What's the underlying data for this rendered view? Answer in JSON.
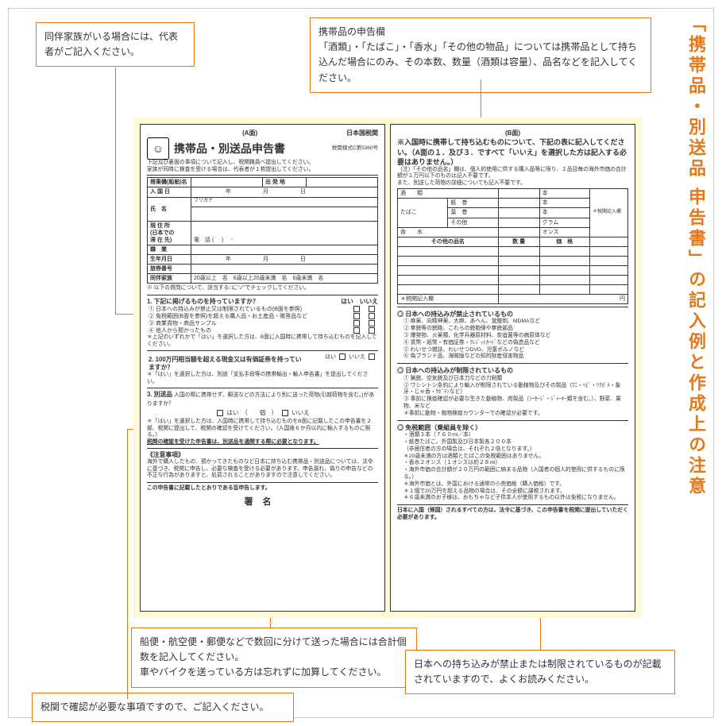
{
  "colors": {
    "accent": "#e67817",
    "form_bg": "#fff9d6",
    "border": "#333333",
    "frame": "#cccccc"
  },
  "vtitle": "「携帯品・別送品 申告書」の記入例と作成上の注意",
  "notes": {
    "n1": "同伴家族がいる場合には、代表者がご記入ください。",
    "n2": "携帯品の申告欄\n「酒類」・「たばこ」・「香水」「その他の物品」については携帯品として持ち込んだ場合にのみ、その本数、数量（酒類は容量）、品名などを記入してください。",
    "n3": "船便・航空便・郵便などで数回に分けて送った場合には合計個数を記入してください。\n車やバイクを送っている方は忘れずに加算してください。",
    "n4": "日本への持ち込みが禁止または制限されているものが記載されていますので、よくお読みください。",
    "n5": "税関で確認が必要な事項ですので、ご記入ください。"
  },
  "panelA": {
    "side_label": "(A面)",
    "agency": "日本国税関",
    "form_no": "税関様式C第5360号",
    "title": "携帯品・別送品申告書",
    "intro": "下記及び裏面の事項について記入し、税関職員へ提出してください。\n家族が同時に検査を受ける場合は、代表者が１枚提出してください。",
    "fields": {
      "flight": "搭乗機(船舶)名",
      "depart": "出 発 地",
      "entry_date": "入 国 日",
      "year": "年",
      "month": "月",
      "day": "日",
      "furigana": "フリガナ",
      "name": "氏　名",
      "address": "現 住 所\n(日本での\n滞 在 先)",
      "tel": "電　話",
      "job": "職　業",
      "dob": "生年月日",
      "passport": "旅券番号",
      "family": "同伴家族",
      "age1": "20歳以上",
      "age2": "6歳以上20歳未満",
      "age3": "6歳未満",
      "unit": "名"
    },
    "check_note": "※ 以下の質問について、該当する□に\"✓\"でチェックしてください。",
    "q1": {
      "head": "1. 下記に掲げるものを持っていますか？",
      "yes": "はい",
      "no": "いいえ",
      "items": [
        "① 日本への持込みが禁止又は制限されているもの(B面を参照)",
        "② 免税範囲(B面を参照)を超える購入品・お土産品・贈答品など",
        "③ 商業貨物・商品サンプル",
        "④ 他人から預かったもの"
      ],
      "foot": "＊上記のいずれかで「はい」を選択した方は、B面に入国時に携帯して持ち込むものを記入してください。"
    },
    "q2": {
      "head": "2. 100万円相当額を超える現金又は有価証券を持っていますか？",
      "foot": "＊「はい」を選択した方は、別途「支払手段等の携帯輸出・輸入申告書」を提出してください。"
    },
    "q3": {
      "head": "3. 別送品",
      "body": "入国の際に携帯せず、郵送などの方法により別に送った荷物(引越荷物を含む。)がありますか？",
      "yes": "はい",
      "unit": "個",
      "no": "いいえ",
      "foot1": "＊「はい」を選択した方は、入国時に携帯して持ち込むものをB面に記載したこの申告書を２部、税関に提出して、税関の確認を受けてください。（入国後６か月以内に輸入するものに限る。）",
      "foot2": "税関の確認を受けた申告書は、別送品を通関する際に必要となります。"
    },
    "caution_h": "《注意事項》",
    "caution": "海外で購入したもの、預かってきたものなど日本に持ち込む携帯品・別送品については、法令に基づき、税関に申告し、必要な検査を受ける必要があります。申告漏れ、偽りの申告などの不正な行為がありますと、処罰されることがありますので注意してください。",
    "confirm": "この申告書に記載したとおりである旨申告します。",
    "sig": "署名"
  },
  "panelB": {
    "side_label": "(B面)",
    "head": "※入国時に携帯して持ち込むものについて、下記の表に記入してください。（A面の１．及び３．ですべて「いいえ」を選択した方は記入する必要はありません。）",
    "note": "（注）「その他の品名」欄は、個人的使用に供する購入品等に限り、１品目毎の海外市価の合計額が１万円以下のものは記入不要です。\nまた、別送した荷物の詳細についても記入不要です。",
    "tbl": {
      "sake": "酒　　類",
      "sake_u": "本",
      "tobacco": "たばこ",
      "t1": "紙　巻",
      "t1u": "本",
      "t2": "葉　巻",
      "t2u": "本",
      "t3": "その他",
      "t3u": "グラム",
      "perfume": "香　　水",
      "perfume_u": "オンス",
      "other_h": [
        "その他の品名",
        "数 量",
        "価　格"
      ],
      "tax_col": "＊税関記入欄",
      "total": "＊税関記入欄",
      "yen": "円"
    },
    "sec1": {
      "h": "日本への持込みが禁止されているもの",
      "items": [
        "① 麻薬、向精神薬、大麻、あへん、覚醒剤、MDMAなど",
        "② 拳銃等の銃砲、これらの銃砲弾や拳銃部品",
        "③ 爆発物、火薬類、化学兵器原材料、炭疽菌等の病原体など",
        "④ 貨幣・紙幣・有価証券・ｸﾚｼﾞｯﾄｶｰﾄﾞなどの偽造品など",
        "⑤ わいせつ雑誌、わいせつDVD、児童ポルノなど",
        "⑥ 偽ブランド品、海賊版などの知的財産侵害物品"
      ]
    },
    "sec2": {
      "h": "日本への持込みが制限されているもの",
      "items": [
        "① 猟銃、空気銃及び日本刀などの刀剣類",
        "② ワシントン条約により輸入が制限されている動植物及びその製品（ﾜﾆ・ﾍﾋﾞ・ﾘｸｶﾞﾒ・象牙・じゃ香・ｻﾎﾞﾃﾝなど）",
        "③ 事前に検疫確認が必要な生きた動植物、肉製品（ｿｰｾｰｼﾞ・ｼﾞｬｰｷｰ類を含む。）、野菜、果物、米など",
        "＊事前に動物・植物検疫カウンターでの確認が必要です。"
      ]
    },
    "sec3": {
      "h": "免税範囲（乗組員を除く）",
      "items": [
        "・酒類３本（７６０ml／本）",
        "・紙巻たばこ。外国製及び日本製各２００本\n（非居住者の方の場合は、それぞれ２倍となります。）\n＊20歳未満の方は酒類とたばこの免税範囲はありません。",
        "・香水２オンス（１オンスは約２８ml）",
        "・海外市価の合計額が２０万円の範囲に納まる品物（入国者の個人的使用に供するものに限る。）",
        "＊海外市価とは、外国における通常の小売価格（購入価格）です。",
        "＊１個で20万円を超える品物の場合は、その全額に課税されます。",
        "＊６歳未満のお子様は、おもちゃなど子供本人が使用するもの以外は免税になりません。"
      ]
    },
    "footer": "日本に入国（帰国）されるすべての方は、法令に基づき、この申告書を税関に提出していただく必要があります。"
  }
}
